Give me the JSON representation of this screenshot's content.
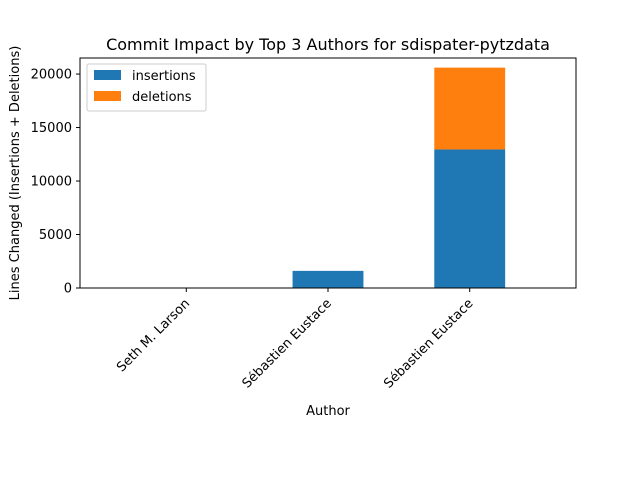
{
  "chart_data": {
    "type": "bar",
    "stacked": true,
    "title": "Commit Impact by Top 3 Authors for sdispater-pytzdata",
    "xlabel": "Author",
    "ylabel": "Lines Changed (Insertions + Deletions)",
    "categories": [
      "Seth M. Larson",
      "Sébastien Eustace",
      "Sébastien Eustace"
    ],
    "series": [
      {
        "name": "insertions",
        "color": "#1f77b4",
        "values": [
          2,
          1600,
          12950
        ]
      },
      {
        "name": "deletions",
        "color": "#ff7f0e",
        "values": [
          1,
          0,
          7650
        ]
      }
    ],
    "ylim": [
      0,
      21500
    ],
    "yticks": [
      0,
      5000,
      10000,
      15000,
      20000
    ],
    "grid": false,
    "legend_position": "upper-left"
  }
}
